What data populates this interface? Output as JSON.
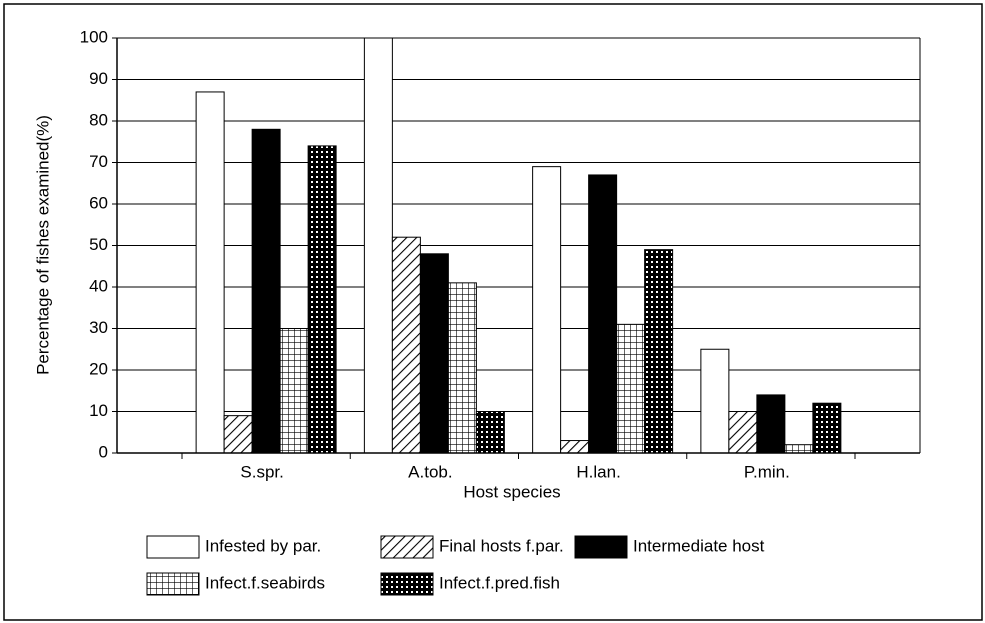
{
  "chart_data": {
    "type": "bar",
    "y_label": "Percentage of fishes examined(%)",
    "x_label": "Host species",
    "categories": [
      "S.spr.",
      "A.tob.",
      "H.lan.",
      "P.min."
    ],
    "series": [
      {
        "name": "Infested by par.",
        "color": "#ffffff",
        "pattern": "none",
        "values": [
          87,
          100,
          69,
          25
        ]
      },
      {
        "name": "Final hosts f.par.",
        "color": "#ffffff",
        "pattern": "diagonal",
        "values": [
          9,
          52,
          3,
          10
        ]
      },
      {
        "name": "Intermediate host",
        "color": "#000000",
        "pattern": "none",
        "values": [
          78,
          48,
          67,
          14
        ]
      },
      {
        "name": "Infect.f.seabirds",
        "color": "#ffffff",
        "pattern": "grid",
        "values": [
          30,
          41,
          31,
          2
        ]
      },
      {
        "name": "Infect.f.pred.fish",
        "color": "#ffffff",
        "pattern": "checker",
        "values": [
          74,
          10,
          49,
          12
        ]
      }
    ],
    "ylim": [
      0,
      100
    ],
    "yticks": [
      0,
      10,
      20,
      30,
      40,
      50,
      60,
      70,
      80,
      90,
      100
    ],
    "grid": true
  }
}
